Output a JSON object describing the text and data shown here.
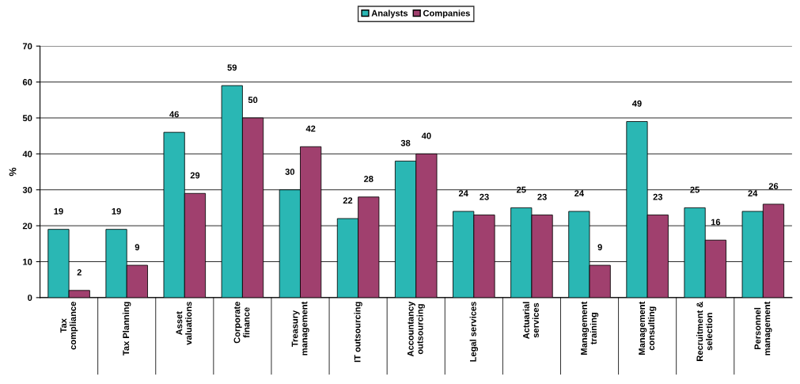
{
  "chart_data": {
    "type": "bar",
    "ylabel": "%",
    "categories": [
      "Tax\ncompliance",
      "Tax Planning",
      "Asset\nvaluations",
      "Corporate\nfinance",
      "Treasury\nmanagement",
      "IT outsourcing",
      "Accountancy\noutsourcing",
      "Legal services",
      "Actuarial\nservices",
      "Management\ntraining",
      "Management\nconsulting",
      "Recruitment &\nselection",
      "Personnel\nmanagement"
    ],
    "series": [
      {
        "name": "Analysts",
        "color": "#2ab7b4",
        "values": [
          19,
          19,
          46,
          59,
          30,
          22,
          38,
          24,
          25,
          24,
          49,
          25,
          24
        ]
      },
      {
        "name": "Companies",
        "color": "#a0406e",
        "values": [
          2,
          9,
          29,
          50,
          42,
          28,
          40,
          23,
          23,
          9,
          23,
          16,
          26
        ]
      }
    ],
    "ylim": [
      0,
      70
    ],
    "yticks": [
      0,
      10,
      20,
      30,
      40,
      50,
      60,
      70
    ],
    "grid": "y",
    "legend": "top",
    "data_labels": true
  }
}
